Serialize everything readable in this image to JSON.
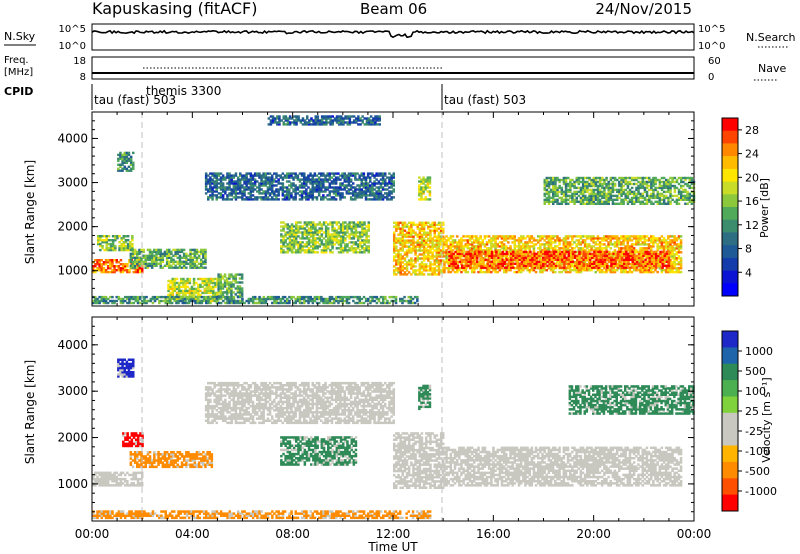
{
  "header": {
    "station": "Kapuskasing (fitACF)",
    "beam": "Beam 06",
    "date": "24/Nov/2015"
  },
  "top_panels": {
    "nsky_label": "N.Sky",
    "nsky_ticks": [
      "10^5",
      "10^0"
    ],
    "nsearch_label": "N.Search",
    "nsearch_ticks": [
      "10^5",
      "10^0"
    ],
    "freq_label_1": "Freq.",
    "freq_label_2": "[MHz]",
    "freq_ticks": [
      "18",
      "8"
    ],
    "nave_label": "Nave",
    "nave_ticks": [
      "60",
      "0"
    ],
    "cpid_label": "CPID",
    "cpid_segments": [
      "tau (fast) 503",
      "themis 3300",
      "tau (fast) 503"
    ]
  },
  "time_axis": {
    "label": "Time UT",
    "ticks": [
      "00:00",
      "04:00",
      "08:00",
      "12:00",
      "16:00",
      "20:00",
      "00:00"
    ]
  },
  "chart_data": [
    {
      "type": "heatmap",
      "title": "",
      "ylabel": "Slant Range [km]",
      "xlabel": "",
      "xlim": [
        0,
        24
      ],
      "ylim": [
        200,
        4600
      ],
      "y_ticks": [
        "1000",
        "2000",
        "3000",
        "4000"
      ],
      "colorbar_label": "Power [dB]",
      "colorbar_ticks": [
        "28",
        "24",
        "20",
        "16",
        "12",
        "8",
        "4"
      ],
      "colorbar_colors": [
        "#ff0000",
        "#ff4400",
        "#ff8800",
        "#ffbb00",
        "#ffe600",
        "#c8dc28",
        "#8cc83c",
        "#50aa5a",
        "#3c8c6e",
        "#2d6e82",
        "#1e5a96",
        "#143caa",
        "#0a14d2",
        "#0000ff"
      ],
      "echo_regions": [
        {
          "t": [
            0.0,
            2.0
          ],
          "r": [
            950,
            1250
          ],
          "level": 26
        },
        {
          "t": [
            0.2,
            1.6
          ],
          "r": [
            1450,
            1800
          ],
          "level": 16
        },
        {
          "t": [
            1.0,
            1.6
          ],
          "r": [
            3250,
            3700
          ],
          "level": 12
        },
        {
          "t": [
            1.5,
            4.5
          ],
          "r": [
            1050,
            1500
          ],
          "level": 14
        },
        {
          "t": [
            3.0,
            5.0
          ],
          "r": [
            300,
            800
          ],
          "level": 18
        },
        {
          "t": [
            5.0,
            6.0
          ],
          "r": [
            400,
            900
          ],
          "level": 14
        },
        {
          "t": [
            4.5,
            12.0
          ],
          "r": [
            2600,
            3200
          ],
          "level": 8
        },
        {
          "t": [
            7.5,
            11.0
          ],
          "r": [
            1400,
            2100
          ],
          "level": 16
        },
        {
          "t": [
            0.0,
            13.0
          ],
          "r": [
            250,
            400
          ],
          "level": 12
        },
        {
          "t": [
            12.0,
            14.0
          ],
          "r": [
            900,
            2100
          ],
          "level": 22
        },
        {
          "t": [
            13.0,
            13.5
          ],
          "r": [
            2600,
            3100
          ],
          "level": 18
        },
        {
          "t": [
            14.0,
            23.5
          ],
          "r": [
            950,
            1800
          ],
          "level": 22
        },
        {
          "t": [
            14.2,
            23.0
          ],
          "r": [
            1050,
            1450
          ],
          "level": 27
        },
        {
          "t": [
            18.0,
            24.0
          ],
          "r": [
            2500,
            3100
          ],
          "level": 14
        },
        {
          "t": [
            7.0,
            11.5
          ],
          "r": [
            4300,
            4500
          ],
          "level": 8
        }
      ]
    },
    {
      "type": "heatmap",
      "title": "",
      "ylabel": "Slant Range [km]",
      "xlabel": "Time UT",
      "xlim": [
        0,
        24
      ],
      "ylim": [
        200,
        4600
      ],
      "y_ticks": [
        "1000",
        "2000",
        "3000",
        "4000"
      ],
      "colorbar_label": "Velocity [m s⁻¹]",
      "colorbar_ticks": [
        "1000",
        "500",
        "100",
        "25",
        "-25",
        "-100",
        "-500",
        "-1000"
      ],
      "colorbar_colors": [
        "#1e28c8",
        "#1e64aa",
        "#2e8b57",
        "#4caf50",
        "#7fd23c",
        "#c8c8c0",
        "#c8c8c0",
        "#ffb400",
        "#ff8c00",
        "#ff5000",
        "#ff0000"
      ],
      "echo_regions": [
        {
          "t": [
            0.0,
            2.0
          ],
          "r": [
            950,
            1250
          ],
          "level": "ground"
        },
        {
          "t": [
            1.5,
            4.8
          ],
          "r": [
            1350,
            1700
          ],
          "level": -100
        },
        {
          "t": [
            1.2,
            2.0
          ],
          "r": [
            1800,
            2100
          ],
          "level": -500
        },
        {
          "t": [
            7.5,
            10.5
          ],
          "r": [
            1400,
            2000
          ],
          "level": 100
        },
        {
          "t": [
            4.5,
            12.0
          ],
          "r": [
            2300,
            3200
          ],
          "level": "ground"
        },
        {
          "t": [
            0.0,
            13.5
          ],
          "r": [
            250,
            400
          ],
          "level": -100
        },
        {
          "t": [
            12.0,
            14.0
          ],
          "r": [
            900,
            2100
          ],
          "level": "ground"
        },
        {
          "t": [
            14.0,
            23.5
          ],
          "r": [
            950,
            1800
          ],
          "level": "ground"
        },
        {
          "t": [
            13.0,
            13.5
          ],
          "r": [
            2600,
            3100
          ],
          "level": 100
        },
        {
          "t": [
            19.0,
            24.0
          ],
          "r": [
            2500,
            3100
          ],
          "level": 100
        },
        {
          "t": [
            1.0,
            1.6
          ],
          "r": [
            3300,
            3700
          ],
          "level": 500
        }
      ]
    }
  ],
  "colors": {
    "ground_scatter": "#c8c8c0",
    "mode_change": "#c0c0c0"
  }
}
